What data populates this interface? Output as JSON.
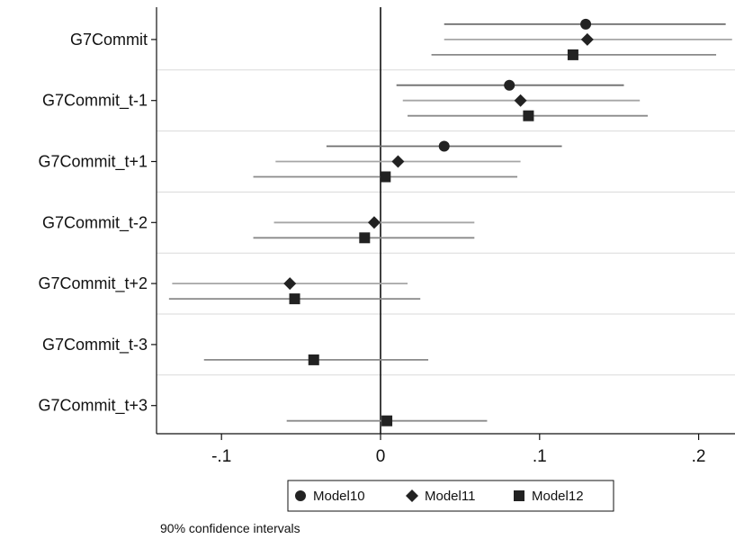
{
  "chart_data": {
    "type": "scatter",
    "subtype": "coefficient-plot",
    "categories": [
      "G7Commit",
      "G7Commit_t-1",
      "G7Commit_t+1",
      "G7Commit_t-2",
      "G7Commit_t+2",
      "G7Commit_t-3",
      "G7Commit_t+3"
    ],
    "x_ticks": [
      -0.1,
      0,
      0.1,
      0.2
    ],
    "x_tick_labels": [
      "-.1",
      "0",
      ".1",
      ".2"
    ],
    "xlim": [
      -0.14,
      0.223
    ],
    "reference_line": 0,
    "grid": true,
    "legend": {
      "position": "bottom"
    },
    "note": "90% confidence intervals",
    "series": [
      {
        "name": "Model10",
        "marker": "circle",
        "ci_color": "#6e6e6e",
        "points": [
          {
            "category": "G7Commit",
            "estimate": 0.129,
            "ci": [
              0.04,
              0.217
            ]
          },
          {
            "category": "G7Commit_t-1",
            "estimate": 0.081,
            "ci": [
              0.01,
              0.153
            ]
          },
          {
            "category": "G7Commit_t+1",
            "estimate": 0.04,
            "ci": [
              -0.034,
              0.114
            ]
          }
        ]
      },
      {
        "name": "Model11",
        "marker": "diamond",
        "ci_color": "#a6a6a6",
        "points": [
          {
            "category": "G7Commit",
            "estimate": 0.13,
            "ci": [
              0.04,
              0.221
            ]
          },
          {
            "category": "G7Commit_t-1",
            "estimate": 0.088,
            "ci": [
              0.014,
              0.163
            ]
          },
          {
            "category": "G7Commit_t+1",
            "estimate": 0.011,
            "ci": [
              -0.066,
              0.088
            ]
          },
          {
            "category": "G7Commit_t-2",
            "estimate": -0.004,
            "ci": [
              -0.067,
              0.059
            ]
          },
          {
            "category": "G7Commit_t+2",
            "estimate": -0.057,
            "ci": [
              -0.131,
              0.017
            ]
          }
        ]
      },
      {
        "name": "Model12",
        "marker": "square",
        "ci_color": "#8a8a8a",
        "points": [
          {
            "category": "G7Commit",
            "estimate": 0.121,
            "ci": [
              0.032,
              0.211
            ]
          },
          {
            "category": "G7Commit_t-1",
            "estimate": 0.093,
            "ci": [
              0.017,
              0.168
            ]
          },
          {
            "category": "G7Commit_t+1",
            "estimate": 0.003,
            "ci": [
              -0.08,
              0.086
            ]
          },
          {
            "category": "G7Commit_t-2",
            "estimate": -0.01,
            "ci": [
              -0.08,
              0.059
            ]
          },
          {
            "category": "G7Commit_t+2",
            "estimate": -0.054,
            "ci": [
              -0.133,
              0.025
            ]
          },
          {
            "category": "G7Commit_t-3",
            "estimate": -0.042,
            "ci": [
              -0.111,
              0.03
            ]
          },
          {
            "category": "G7Commit_t+3",
            "estimate": 0.004,
            "ci": [
              -0.059,
              0.067
            ]
          }
        ]
      }
    ]
  },
  "colors": {
    "marker": "#222222",
    "axis": "#111111",
    "grid": "#d9d9d9",
    "zero_line": "#111111"
  }
}
